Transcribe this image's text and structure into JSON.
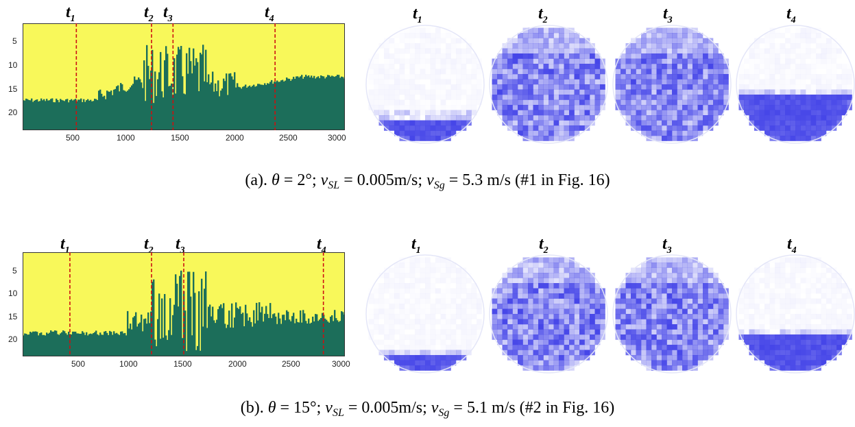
{
  "panels": [
    {
      "id": "a",
      "t_labels": [
        "t",
        "t",
        "t",
        "t"
      ],
      "t_subs": [
        "1",
        "2",
        "3",
        "4"
      ],
      "t_sample_x": [
        500,
        1200,
        1400,
        2350
      ],
      "y_ticks": [
        "5",
        "10",
        "15",
        "20"
      ],
      "x_ticks": [
        "500",
        "1000",
        "1500",
        "2000",
        "2500",
        "3000"
      ],
      "caption": {
        "prefix": "(a). ",
        "theta": "θ",
        "theta_val": " = 2°; ",
        "vsl": "v",
        "vsl_sub": "SL",
        "vsl_val": " = 0.005m/s; ",
        "vsg": "v",
        "vsg_sub": "Sg",
        "vsg_val": " = 5.3 m/s (#1 in Fig. 16)"
      },
      "liquid_level_fraction": [
        0.19,
        0.0,
        0.0,
        0.38
      ]
    },
    {
      "id": "b",
      "t_labels": [
        "t",
        "t",
        "t",
        "t"
      ],
      "t_subs": [
        "1",
        "2",
        "3",
        "4"
      ],
      "t_sample_x": [
        440,
        1200,
        1500,
        2800
      ],
      "y_ticks": [
        "5",
        "10",
        "15",
        "20"
      ],
      "x_ticks": [
        "500",
        "1000",
        "1500",
        "2000",
        "2500",
        "3000"
      ],
      "caption": {
        "prefix": "(b). ",
        "theta": "θ",
        "theta_val": " = 15°; ",
        "vsl": "v",
        "vsl_sub": "SL",
        "vsl_val": " = 0.005m/s; ",
        "vsg": "v",
        "vsg_sub": "Sg",
        "vsg_val": " = 5.1 m/s (#2 in Fig. 16)"
      },
      "liquid_level_fraction": [
        0.14,
        0.0,
        0.0,
        0.3
      ]
    }
  ],
  "colors": {
    "heatmap_gas": "#f8f85a",
    "heatmap_liquid": "#1c6e5a",
    "heatmap_mix": "#6fa86a",
    "marker_line": "#cc1111",
    "tomo_liquid": "#4646e8",
    "tomo_gas": "#ffffff",
    "tomo_outline": "#e4e6f8"
  }
}
